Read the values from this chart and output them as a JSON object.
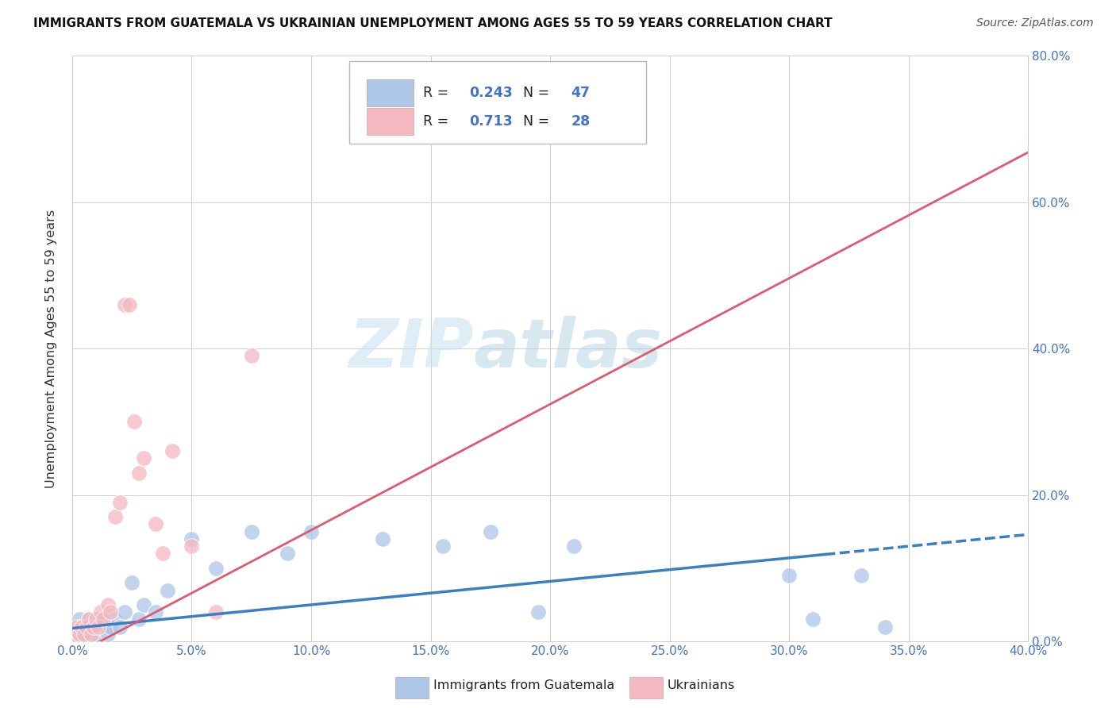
{
  "title": "IMMIGRANTS FROM GUATEMALA VS UKRAINIAN UNEMPLOYMENT AMONG AGES 55 TO 59 YEARS CORRELATION CHART",
  "source": "Source: ZipAtlas.com",
  "ylabel": "Unemployment Among Ages 55 to 59 years",
  "legend_label1": "Immigrants from Guatemala",
  "legend_label2": "Ukrainians",
  "R1": 0.243,
  "N1": 47,
  "R2": 0.713,
  "N2": 28,
  "color1": "#aec6e8",
  "color2": "#f4b8c1",
  "line_color1": "#3a7fc1",
  "line_color2": "#e05a6e",
  "watermark_zip": "ZIP",
  "watermark_atlas": "atlas",
  "xlim": [
    0.0,
    0.4
  ],
  "ylim": [
    0.0,
    0.8
  ],
  "xticks": [
    0.0,
    0.05,
    0.1,
    0.15,
    0.2,
    0.25,
    0.3,
    0.35,
    0.4
  ],
  "yticks": [
    0.0,
    0.2,
    0.4,
    0.6,
    0.8
  ],
  "guatemala_x": [
    0.001,
    0.002,
    0.002,
    0.003,
    0.003,
    0.004,
    0.004,
    0.005,
    0.005,
    0.006,
    0.006,
    0.007,
    0.007,
    0.008,
    0.008,
    0.009,
    0.009,
    0.01,
    0.01,
    0.011,
    0.012,
    0.013,
    0.014,
    0.015,
    0.016,
    0.018,
    0.02,
    0.022,
    0.025,
    0.028,
    0.03,
    0.035,
    0.04,
    0.05,
    0.06,
    0.075,
    0.09,
    0.1,
    0.13,
    0.155,
    0.175,
    0.195,
    0.21,
    0.3,
    0.31,
    0.33,
    0.34
  ],
  "guatemala_y": [
    0.01,
    0.02,
    0.01,
    0.01,
    0.03,
    0.02,
    0.01,
    0.02,
    0.01,
    0.02,
    0.01,
    0.02,
    0.03,
    0.01,
    0.02,
    0.03,
    0.02,
    0.01,
    0.02,
    0.03,
    0.02,
    0.03,
    0.02,
    0.01,
    0.02,
    0.03,
    0.02,
    0.04,
    0.08,
    0.03,
    0.05,
    0.04,
    0.07,
    0.14,
    0.1,
    0.15,
    0.12,
    0.15,
    0.14,
    0.13,
    0.15,
    0.04,
    0.13,
    0.09,
    0.03,
    0.09,
    0.02
  ],
  "ukrainian_x": [
    0.001,
    0.002,
    0.003,
    0.004,
    0.005,
    0.006,
    0.007,
    0.008,
    0.009,
    0.01,
    0.011,
    0.012,
    0.013,
    0.015,
    0.016,
    0.018,
    0.02,
    0.022,
    0.024,
    0.026,
    0.028,
    0.03,
    0.035,
    0.038,
    0.042,
    0.05,
    0.06,
    0.075
  ],
  "ukrainian_y": [
    0.01,
    0.02,
    0.01,
    0.02,
    0.01,
    0.02,
    0.03,
    0.01,
    0.02,
    0.03,
    0.02,
    0.04,
    0.03,
    0.05,
    0.04,
    0.17,
    0.19,
    0.46,
    0.46,
    0.3,
    0.23,
    0.25,
    0.16,
    0.12,
    0.26,
    0.13,
    0.04,
    0.39
  ],
  "line1_x_solid_end": 0.315,
  "line1_intercept": 0.018,
  "line1_slope": 0.32,
  "line2_intercept": -0.02,
  "line2_slope": 1.72
}
